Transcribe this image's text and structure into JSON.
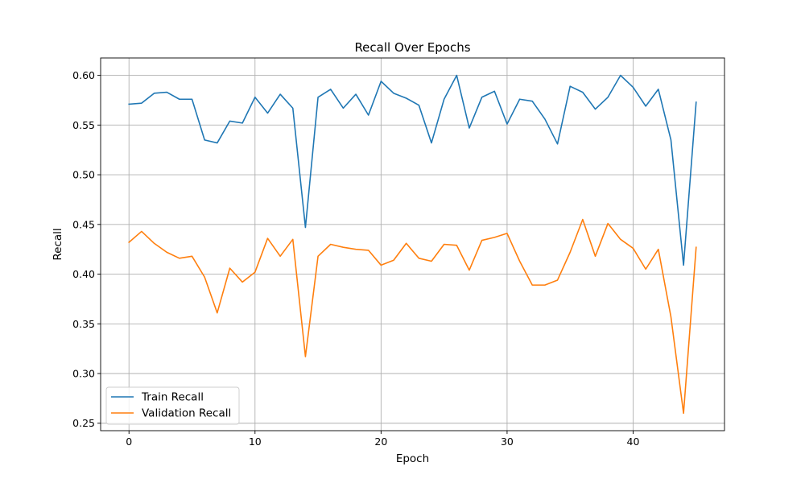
{
  "chart_data": {
    "type": "line",
    "title": "Recall Over Epochs",
    "xlabel": "Epoch",
    "ylabel": "Recall",
    "xlim": [
      -2.25,
      47.25
    ],
    "ylim": [
      0.2425,
      0.6175
    ],
    "xticks": [
      0,
      10,
      20,
      30,
      40
    ],
    "xtick_labels": [
      "0",
      "10",
      "20",
      "30",
      "40"
    ],
    "yticks": [
      0.25,
      0.3,
      0.35,
      0.4,
      0.45,
      0.5,
      0.55,
      0.6
    ],
    "ytick_labels": [
      "0.25",
      "0.30",
      "0.35",
      "0.40",
      "0.45",
      "0.50",
      "0.55",
      "0.60"
    ],
    "grid": true,
    "legend_position": "lower-left",
    "x": [
      0,
      1,
      2,
      3,
      4,
      5,
      6,
      7,
      8,
      9,
      10,
      11,
      12,
      13,
      14,
      15,
      16,
      17,
      18,
      19,
      20,
      21,
      22,
      23,
      24,
      25,
      26,
      27,
      28,
      29,
      30,
      31,
      32,
      33,
      34,
      35,
      36,
      37,
      38,
      39,
      40,
      41,
      42,
      43,
      44,
      45
    ],
    "series": [
      {
        "name": "Train Recall",
        "color": "#1f77b4",
        "values": [
          0.571,
          0.572,
          0.582,
          0.583,
          0.576,
          0.576,
          0.535,
          0.532,
          0.554,
          0.552,
          0.578,
          0.562,
          0.581,
          0.567,
          0.447,
          0.578,
          0.586,
          0.567,
          0.581,
          0.56,
          0.594,
          0.582,
          0.577,
          0.57,
          0.532,
          0.576,
          0.6,
          0.547,
          0.578,
          0.584,
          0.551,
          0.576,
          0.574,
          0.556,
          0.531,
          0.589,
          0.583,
          0.566,
          0.578,
          0.6,
          0.588,
          0.569,
          0.586,
          0.535,
          0.409,
          0.573
        ]
      },
      {
        "name": "Validation Recall",
        "color": "#ff7f0e",
        "values": [
          0.432,
          0.443,
          0.431,
          0.422,
          0.416,
          0.418,
          0.397,
          0.361,
          0.406,
          0.392,
          0.402,
          0.436,
          0.418,
          0.435,
          0.317,
          0.418,
          0.43,
          0.427,
          0.425,
          0.424,
          0.409,
          0.414,
          0.431,
          0.416,
          0.413,
          0.43,
          0.429,
          0.404,
          0.434,
          0.437,
          0.441,
          0.413,
          0.389,
          0.389,
          0.394,
          0.422,
          0.455,
          0.418,
          0.451,
          0.435,
          0.426,
          0.405,
          0.425,
          0.357,
          0.26,
          0.427
        ]
      }
    ]
  }
}
